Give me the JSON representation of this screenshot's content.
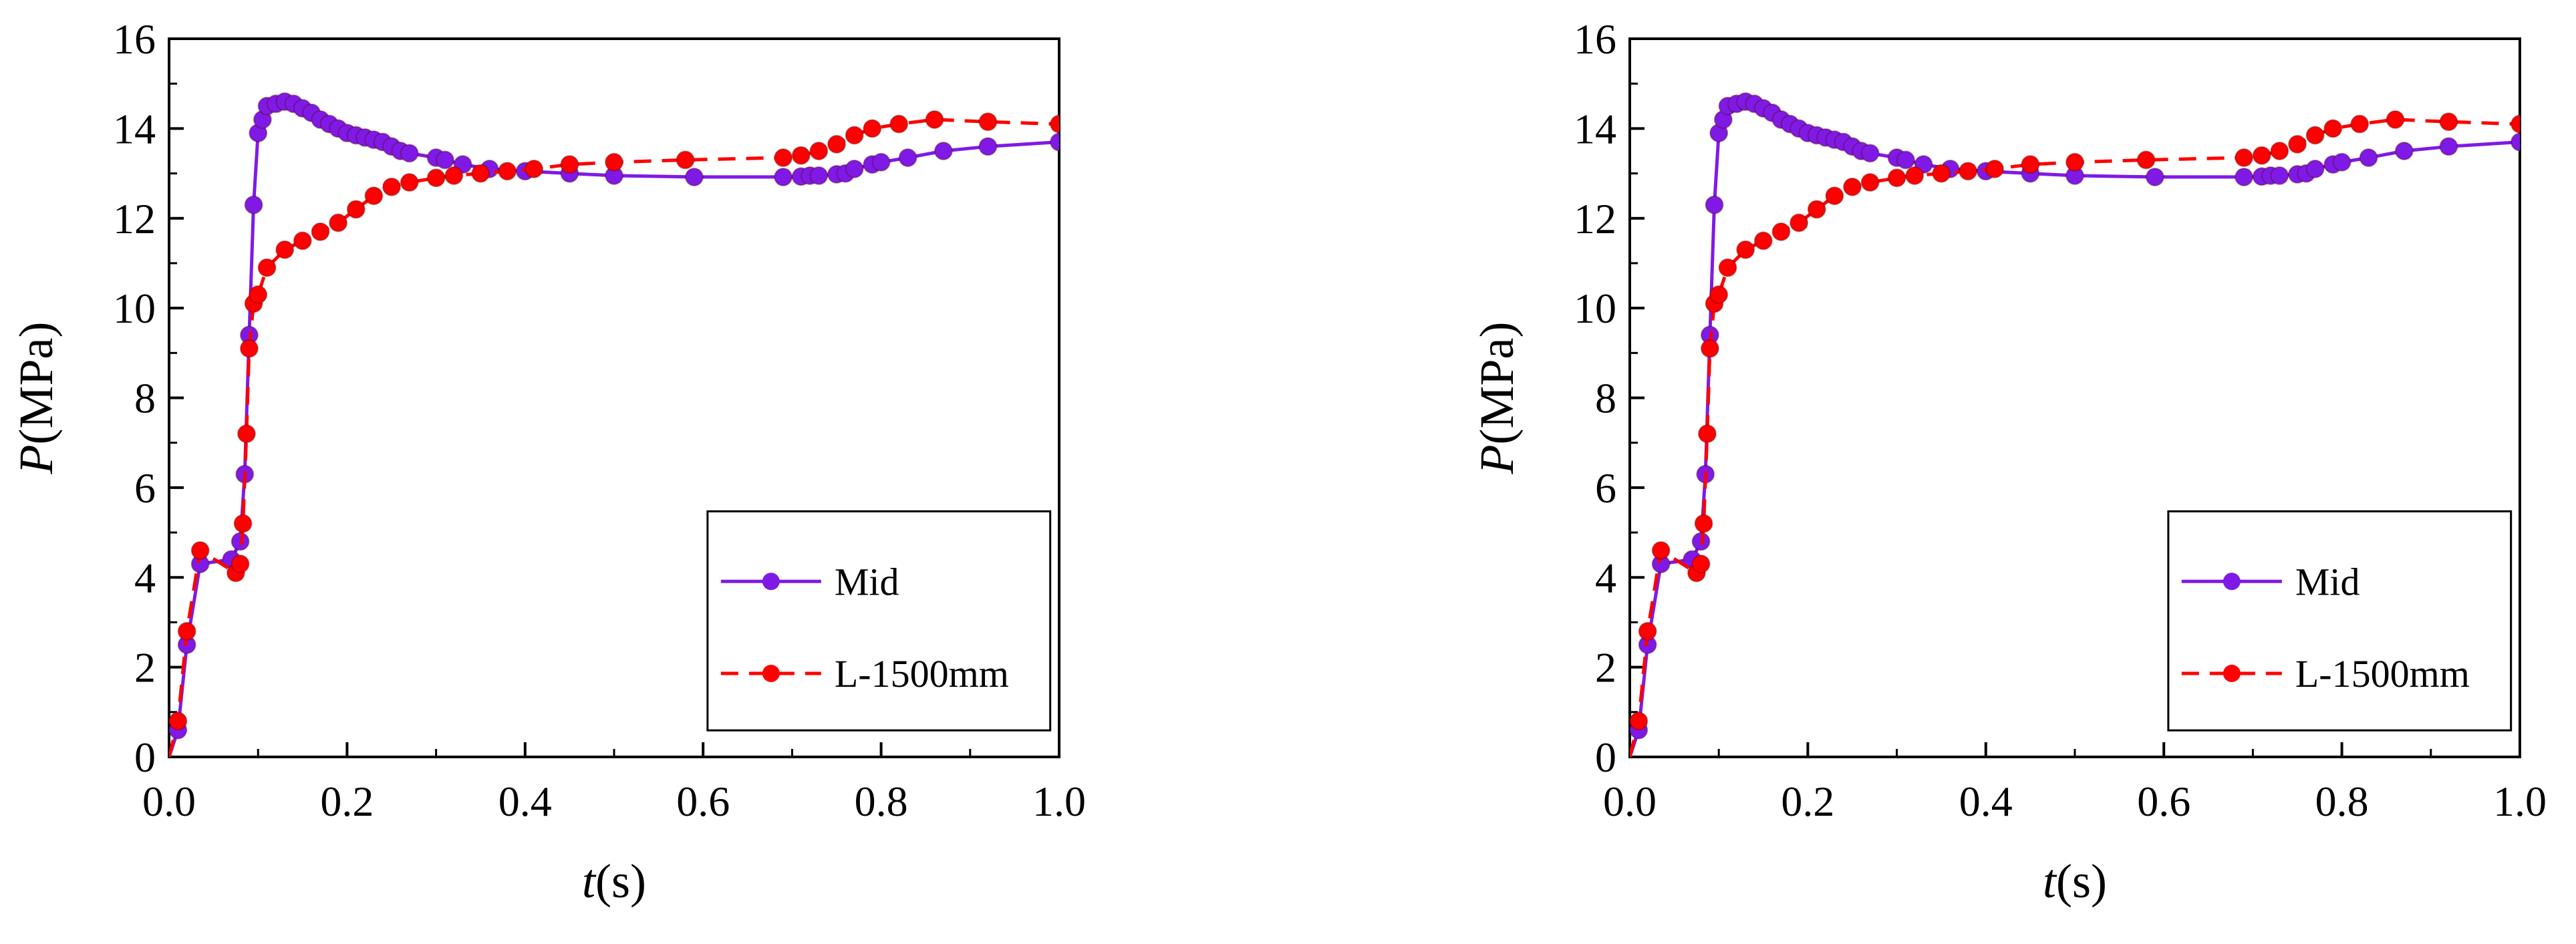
{
  "colors": {
    "mid": "#7f1ae6",
    "l1500": "#ff0000",
    "axis": "#000000"
  },
  "chart_data": [
    {
      "type": "line",
      "title": "",
      "xlabel_var": "t",
      "xlabel_unit": "(s)",
      "ylabel_var": "P",
      "ylabel_unit": "(MPa)",
      "xlim": [
        0,
        1.0
      ],
      "ylim": [
        0,
        16
      ],
      "xticks": [
        "0.0",
        "0.2",
        "0.4",
        "0.6",
        "0.8",
        "1.0"
      ],
      "yticks": [
        "0",
        "2",
        "4",
        "6",
        "8",
        "10",
        "12",
        "14",
        "16"
      ],
      "legend_position": "bottom-right",
      "series": [
        {
          "name": "Mid",
          "style": "solid",
          "color_key": "mid",
          "x": [
            0.0,
            0.01,
            0.02,
            0.035,
            0.07,
            0.08,
            0.085,
            0.09,
            0.095,
            0.1,
            0.105,
            0.11,
            0.12,
            0.13,
            0.14,
            0.15,
            0.16,
            0.17,
            0.18,
            0.19,
            0.2,
            0.21,
            0.22,
            0.23,
            0.24,
            0.25,
            0.26,
            0.27,
            0.3,
            0.31,
            0.33,
            0.36,
            0.4,
            0.45,
            0.5,
            0.59,
            0.69,
            0.71,
            0.72,
            0.73,
            0.75,
            0.76,
            0.77,
            0.79,
            0.8,
            0.83,
            0.87,
            0.92,
            1.0
          ],
          "y": [
            0.0,
            0.6,
            2.5,
            4.3,
            4.4,
            4.8,
            6.3,
            9.4,
            12.3,
            13.9,
            14.2,
            14.5,
            14.55,
            14.6,
            14.55,
            14.45,
            14.35,
            14.2,
            14.1,
            14.0,
            13.9,
            13.85,
            13.8,
            13.75,
            13.7,
            13.6,
            13.5,
            13.45,
            13.35,
            13.3,
            13.2,
            13.1,
            13.05,
            13.0,
            12.95,
            12.92,
            12.92,
            12.93,
            12.95,
            12.95,
            12.98,
            13.0,
            13.1,
            13.2,
            13.25,
            13.35,
            13.5,
            13.6,
            13.7
          ]
        },
        {
          "name": "L-1500mm",
          "style": "dashed",
          "color_key": "l1500",
          "x": [
            0.0,
            0.01,
            0.02,
            0.035,
            0.075,
            0.08,
            0.083,
            0.087,
            0.09,
            0.095,
            0.1,
            0.11,
            0.13,
            0.15,
            0.17,
            0.19,
            0.21,
            0.23,
            0.25,
            0.27,
            0.3,
            0.32,
            0.35,
            0.38,
            0.41,
            0.45,
            0.5,
            0.58,
            0.69,
            0.71,
            0.73,
            0.75,
            0.77,
            0.79,
            0.82,
            0.86,
            0.92,
            1.0
          ],
          "y": [
            0.0,
            0.8,
            2.8,
            4.6,
            4.1,
            4.3,
            5.2,
            7.2,
            9.1,
            10.1,
            10.3,
            10.9,
            11.3,
            11.5,
            11.7,
            11.9,
            12.2,
            12.5,
            12.7,
            12.8,
            12.9,
            12.95,
            13.0,
            13.05,
            13.1,
            13.2,
            13.25,
            13.3,
            13.35,
            13.4,
            13.5,
            13.65,
            13.85,
            14.0,
            14.1,
            14.2,
            14.15,
            14.1
          ]
        }
      ]
    },
    {
      "type": "line",
      "title": "",
      "xlabel_var": "t",
      "xlabel_unit": "(s)",
      "ylabel_var": "P",
      "ylabel_unit": "(MPa)",
      "xlim": [
        0,
        1.0
      ],
      "ylim": [
        0,
        16
      ],
      "xticks": [
        "0.0",
        "0.2",
        "0.4",
        "0.6",
        "0.8",
        "1.0"
      ],
      "yticks": [
        "0",
        "2",
        "4",
        "6",
        "8",
        "10",
        "12",
        "14",
        "16"
      ],
      "legend_position": "bottom-right",
      "series": [
        {
          "name": "Mid",
          "style": "solid",
          "color_key": "mid",
          "x": [
            0.0,
            0.01,
            0.02,
            0.035,
            0.07,
            0.08,
            0.085,
            0.09,
            0.095,
            0.1,
            0.105,
            0.11,
            0.12,
            0.13,
            0.14,
            0.15,
            0.16,
            0.17,
            0.18,
            0.19,
            0.2,
            0.21,
            0.22,
            0.23,
            0.24,
            0.25,
            0.26,
            0.27,
            0.3,
            0.31,
            0.33,
            0.36,
            0.4,
            0.45,
            0.5,
            0.59,
            0.69,
            0.71,
            0.72,
            0.73,
            0.75,
            0.76,
            0.77,
            0.79,
            0.8,
            0.83,
            0.87,
            0.92,
            1.0
          ],
          "y": [
            0.0,
            0.6,
            2.5,
            4.3,
            4.4,
            4.8,
            6.3,
            9.4,
            12.3,
            13.9,
            14.2,
            14.5,
            14.55,
            14.6,
            14.55,
            14.45,
            14.35,
            14.2,
            14.1,
            14.0,
            13.9,
            13.85,
            13.8,
            13.75,
            13.7,
            13.6,
            13.5,
            13.45,
            13.35,
            13.3,
            13.2,
            13.1,
            13.05,
            13.0,
            12.95,
            12.92,
            12.92,
            12.93,
            12.95,
            12.95,
            12.98,
            13.0,
            13.1,
            13.2,
            13.25,
            13.35,
            13.5,
            13.6,
            13.7
          ]
        },
        {
          "name": "L-1500mm",
          "style": "dashed",
          "color_key": "l1500",
          "x": [
            0.0,
            0.01,
            0.02,
            0.035,
            0.075,
            0.08,
            0.083,
            0.087,
            0.09,
            0.095,
            0.1,
            0.11,
            0.13,
            0.15,
            0.17,
            0.19,
            0.21,
            0.23,
            0.25,
            0.27,
            0.3,
            0.32,
            0.35,
            0.38,
            0.41,
            0.45,
            0.5,
            0.58,
            0.69,
            0.71,
            0.73,
            0.75,
            0.77,
            0.79,
            0.82,
            0.86,
            0.92,
            1.0
          ],
          "y": [
            0.0,
            0.8,
            2.8,
            4.6,
            4.1,
            4.3,
            5.2,
            7.2,
            9.1,
            10.1,
            10.3,
            10.9,
            11.3,
            11.5,
            11.7,
            11.9,
            12.2,
            12.5,
            12.7,
            12.8,
            12.9,
            12.95,
            13.0,
            13.05,
            13.1,
            13.2,
            13.25,
            13.3,
            13.35,
            13.4,
            13.5,
            13.65,
            13.85,
            14.0,
            14.1,
            14.2,
            14.15,
            14.1
          ]
        }
      ]
    }
  ]
}
